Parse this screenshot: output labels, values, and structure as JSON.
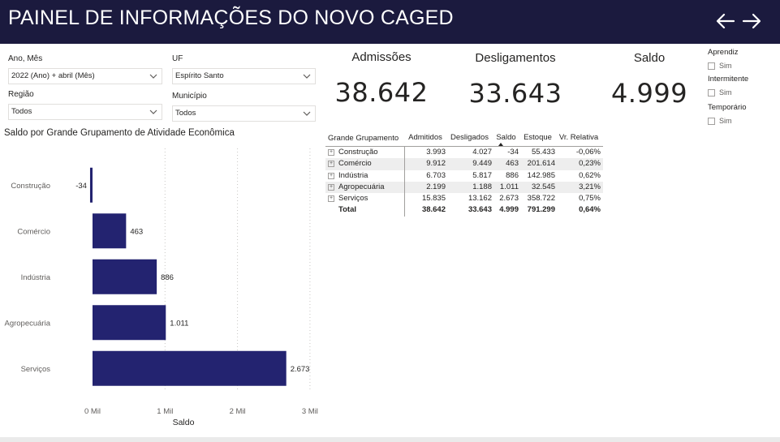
{
  "header": {
    "title": "PAINEL DE INFORMAÇÕES DO NOVO CAGED",
    "back_icon": "arrow-left-icon",
    "forward_icon": "arrow-right-icon"
  },
  "filters": {
    "ano_mes": {
      "label": "Ano, Mês",
      "value": "2022 (Ano) + abril (Mês)"
    },
    "uf": {
      "label": "UF",
      "value": "Espírito Santo"
    },
    "regiao": {
      "label": "Região",
      "value": "Todos"
    },
    "municipio": {
      "label": "Município",
      "value": "Todos"
    }
  },
  "kpis": {
    "admissoes": {
      "label": "Admissões",
      "value": "38.642"
    },
    "desligamentos": {
      "label": "Desligamentos",
      "value": "33.643"
    },
    "saldo": {
      "label": "Saldo",
      "value": "4.999"
    }
  },
  "checkbox_filters": [
    {
      "title": "Aprendiz",
      "option": "Sim"
    },
    {
      "title": "Intermitente",
      "option": "Sim"
    },
    {
      "title": "Temporário",
      "option": "Sim"
    }
  ],
  "chart_title": "Saldo por Grande Grupamento de Atividade Econômica",
  "chart_data": {
    "type": "bar",
    "orientation": "horizontal",
    "title": "Saldo por Grande Grupamento de Atividade Econômica",
    "xlabel": "Saldo",
    "ylabel": "",
    "categories": [
      "Construção",
      "Comércio",
      "Indústria",
      "Agropecuária",
      "Serviços"
    ],
    "values": [
      -34,
      463,
      886,
      1011,
      2673
    ],
    "value_labels": [
      "-34",
      "463",
      "886",
      "1.011",
      "2.673"
    ],
    "xlim": [
      0,
      3000
    ],
    "xticks": [
      0,
      1000,
      2000,
      3000
    ],
    "xtick_labels": [
      "0 Mil",
      "1 Mil",
      "2 Mil",
      "3 Mil"
    ],
    "grid": "vertical dashed",
    "bar_color": "#232370"
  },
  "table": {
    "columns": [
      "Grande Grupamento",
      "Admitidos",
      "Desligados",
      "Saldo",
      "Estoque",
      "Vr. Relativa"
    ],
    "rows": [
      {
        "name": "Construção",
        "admitidos": "3.993",
        "desligados": "4.027",
        "saldo": "-34",
        "estoque": "55.433",
        "vr_relativa": "-0,06%"
      },
      {
        "name": "Comércio",
        "admitidos": "9.912",
        "desligados": "9.449",
        "saldo": "463",
        "estoque": "201.614",
        "vr_relativa": "0,23%"
      },
      {
        "name": "Indústria",
        "admitidos": "6.703",
        "desligados": "5.817",
        "saldo": "886",
        "estoque": "142.985",
        "vr_relativa": "0,62%"
      },
      {
        "name": "Agropecuária",
        "admitidos": "2.199",
        "desligados": "1.188",
        "saldo": "1.011",
        "estoque": "32.545",
        "vr_relativa": "3,21%"
      },
      {
        "name": "Serviços",
        "admitidos": "15.835",
        "desligados": "13.162",
        "saldo": "2.673",
        "estoque": "358.722",
        "vr_relativa": "0,75%"
      }
    ],
    "total": {
      "name": "Total",
      "admitidos": "38.642",
      "desligados": "33.643",
      "saldo": "4.999",
      "estoque": "791.299",
      "vr_relativa": "0,64%"
    }
  }
}
